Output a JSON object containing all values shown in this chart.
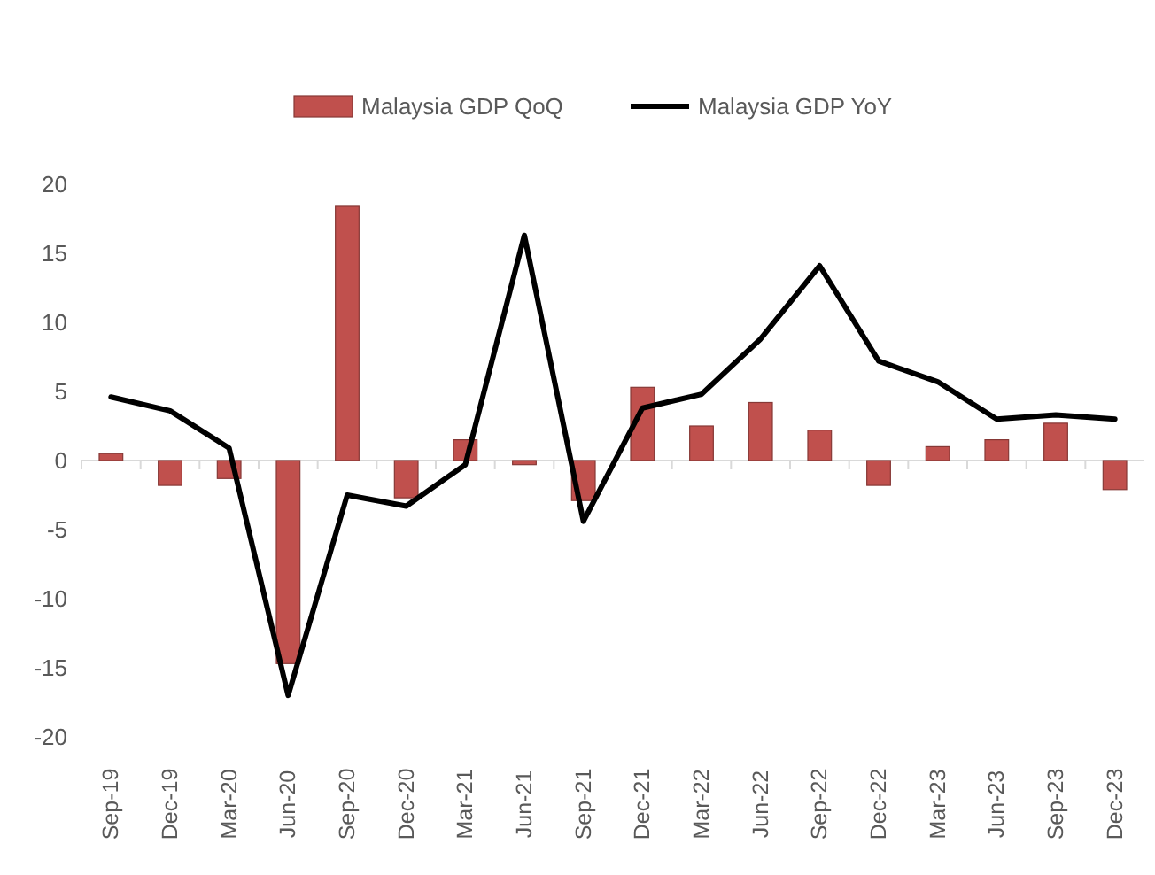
{
  "chart_data": {
    "type": "bar",
    "categories": [
      "Sep-19",
      "Dec-19",
      "Mar-20",
      "Jun-20",
      "Sep-20",
      "Dec-20",
      "Mar-21",
      "Jun-21",
      "Sep-21",
      "Dec-21",
      "Mar-22",
      "Jun-22",
      "Sep-22",
      "Dec-22",
      "Mar-23",
      "Jun-23",
      "Sep-23",
      "Dec-23"
    ],
    "series": [
      {
        "name": "Malaysia GDP QoQ",
        "color": "#c0504d",
        "values": [
          0.5,
          -1.8,
          -1.3,
          -14.7,
          18.4,
          -2.7,
          1.5,
          -0.3,
          -2.9,
          5.3,
          2.5,
          4.2,
          2.2,
          -1.8,
          1.0,
          1.5,
          2.7,
          -2.1
        ]
      },
      {
        "name": "Malaysia GDP YoY",
        "type": "line",
        "color": "#000000",
        "values": [
          4.6,
          3.6,
          0.9,
          -17.0,
          -2.5,
          -3.3,
          -0.3,
          16.3,
          -4.4,
          3.8,
          4.8,
          8.8,
          14.1,
          7.2,
          5.7,
          3.0,
          3.3,
          3.0
        ]
      }
    ],
    "ylim": [
      -20,
      20
    ],
    "yticks": [
      -20,
      -15,
      -10,
      -5,
      0,
      5,
      10,
      15,
      20
    ],
    "legend": "top",
    "marker": "none",
    "line_style": "solid"
  }
}
